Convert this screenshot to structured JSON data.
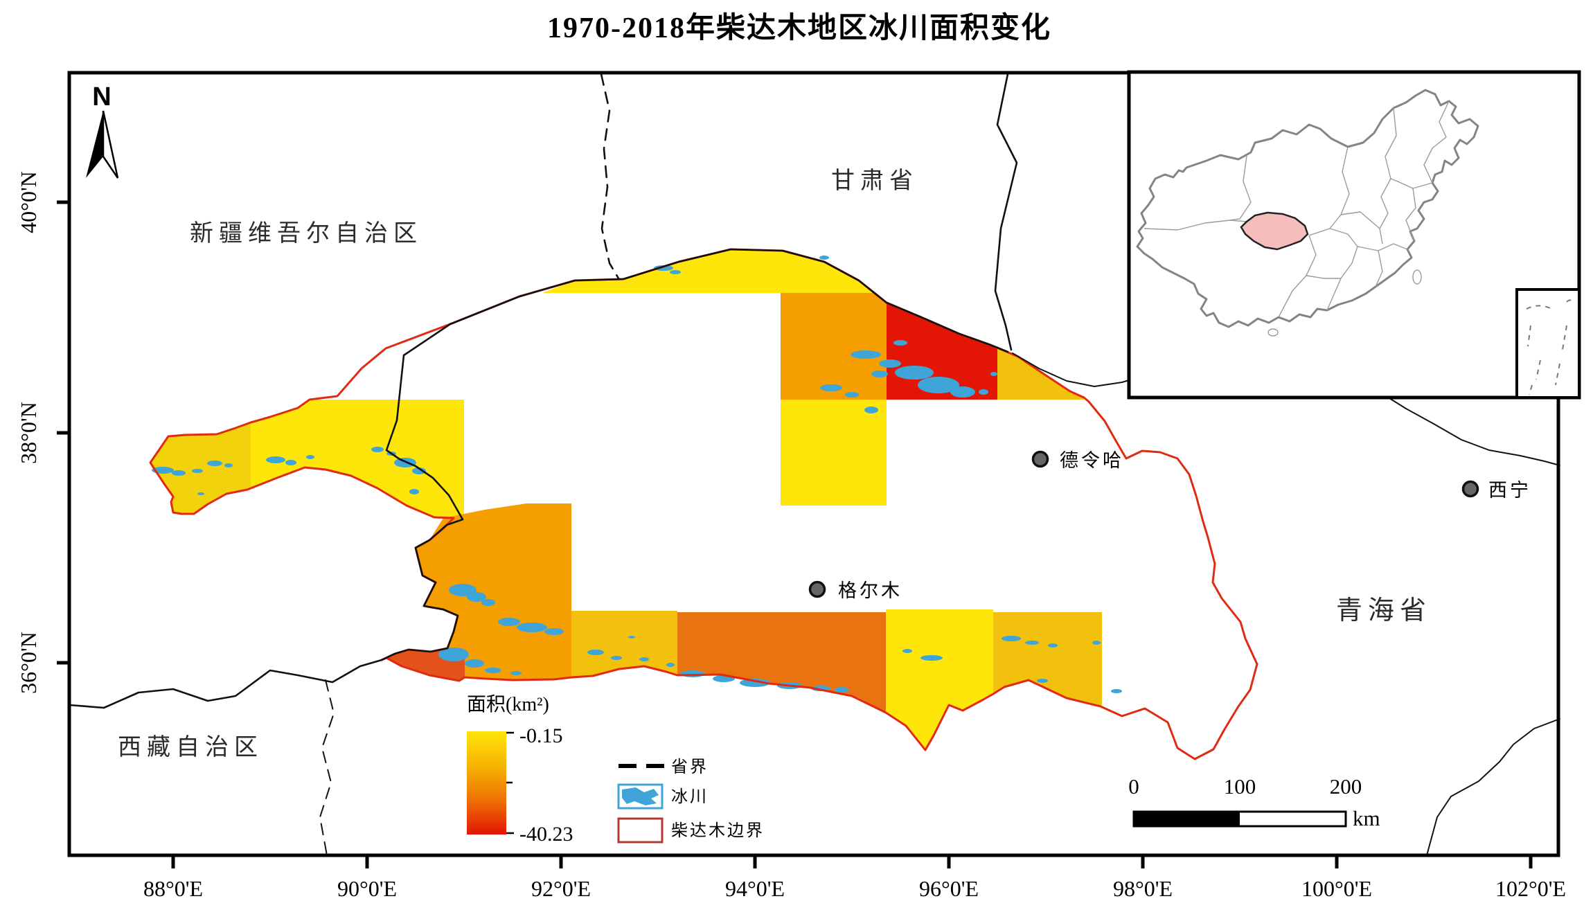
{
  "title": "1970-2018年柴达木地区冰川面积变化",
  "compass": {
    "label": "N"
  },
  "regions": {
    "xinjiang": "新疆维吾尔自治区",
    "gansu": "甘肃省",
    "qinghai": "青海省",
    "xizang": "西藏自治区"
  },
  "cities": [
    {
      "name": "德令哈"
    },
    {
      "name": "格尔木"
    },
    {
      "name": "西宁"
    }
  ],
  "legend": {
    "area_title": "面积(km²)",
    "max_label": "-0.15",
    "min_label": "-40.23",
    "items": [
      {
        "label": "省界"
      },
      {
        "label": "冰川"
      },
      {
        "label": "柴达木边界"
      }
    ]
  },
  "scalebar": {
    "t0": "0",
    "t100": "100",
    "t200": "200",
    "unit": "km"
  },
  "axes": {
    "lon": [
      "88°0'E",
      "90°0'E",
      "92°0'E",
      "94°0'E",
      "96°0'E",
      "98°0'E",
      "100°0'E",
      "102°0'E"
    ],
    "lat": [
      "40°0'N",
      "38°0'N",
      "36°0'N"
    ]
  },
  "colors": {
    "yellow": "#FFE60A",
    "yellow_medium": "#F2D20C",
    "amber": "#F2C10D",
    "orange": "#F59E00",
    "orange_dark": "#E87310",
    "red_orange": "#E2521A",
    "red": "#E31505",
    "glacier": "#3FA5D8",
    "qaidam_boundary": "#E02A12",
    "province_boundary": "#111111",
    "inset_province": "#8A8A8A",
    "highlight_pink": "#F6BDBD",
    "city_dot": "#666666",
    "ramp_top": "#FFE60A",
    "ramp_bottom": "#E31505"
  }
}
